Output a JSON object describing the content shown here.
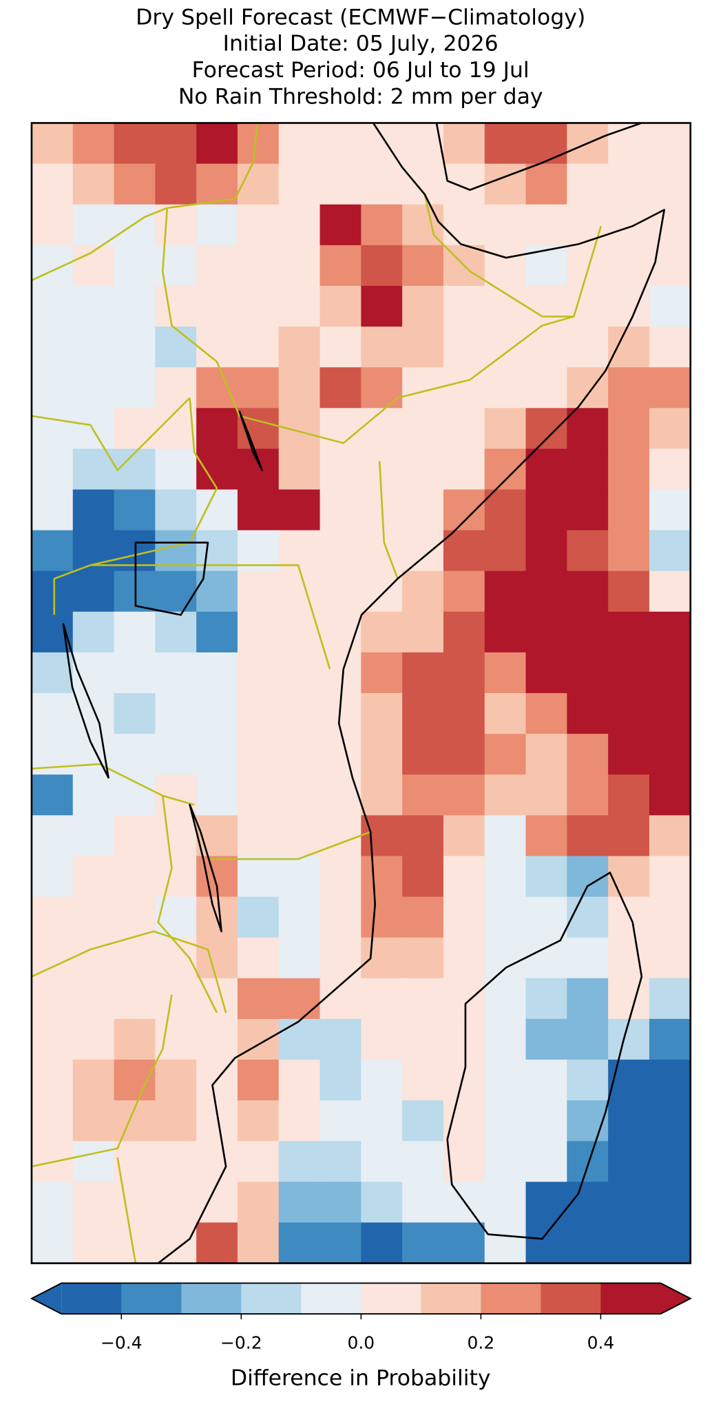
{
  "chart_data": {
    "type": "heatmap",
    "title": [
      "Dry Spell Forecast (ECMWF−Climatology)",
      "Initial Date: 05 July, 2026",
      "Forecast Period: 06 Jul to 19 Jul",
      "No Rain Threshold: 2 mm per day"
    ],
    "values": [
      [
        0.15,
        0.25,
        0.35,
        0.35,
        0.45,
        0.25,
        0.05,
        0.05,
        0.05,
        0.05,
        0.15,
        0.35,
        0.35,
        0.15,
        0.05,
        0.05
      ],
      [
        0.05,
        0.15,
        0.25,
        0.35,
        0.25,
        0.15,
        0.05,
        0.05,
        0.05,
        0.05,
        0.05,
        0.15,
        0.25,
        0.05,
        0.05,
        0.05
      ],
      [
        0.05,
        -0.05,
        -0.05,
        0.05,
        -0.05,
        0.05,
        0.05,
        0.45,
        0.25,
        0.15,
        0.05,
        0.05,
        0.05,
        0.05,
        0.05,
        0.05
      ],
      [
        -0.05,
        0.05,
        -0.05,
        -0.05,
        0.05,
        0.05,
        0.05,
        0.25,
        0.35,
        0.25,
        0.15,
        0.05,
        -0.05,
        0.05,
        0.05,
        0.05
      ],
      [
        -0.05,
        -0.05,
        -0.05,
        0.05,
        0.05,
        0.05,
        0.05,
        0.15,
        0.45,
        0.15,
        0.05,
        0.05,
        0.05,
        0.05,
        0.05,
        -0.05
      ],
      [
        -0.05,
        -0.05,
        -0.05,
        -0.15,
        0.05,
        0.05,
        0.15,
        0.05,
        0.15,
        0.15,
        0.05,
        0.05,
        0.05,
        0.05,
        0.15,
        0.05
      ],
      [
        -0.05,
        -0.05,
        -0.05,
        0.05,
        0.25,
        0.25,
        0.15,
        0.35,
        0.25,
        0.05,
        0.05,
        0.05,
        0.05,
        0.15,
        0.25,
        0.25
      ],
      [
        -0.05,
        -0.05,
        0.05,
        0.05,
        0.45,
        0.35,
        0.15,
        0.05,
        0.05,
        0.05,
        0.05,
        0.15,
        0.35,
        0.45,
        0.25,
        0.15
      ],
      [
        -0.05,
        -0.15,
        -0.15,
        -0.05,
        0.45,
        0.45,
        0.15,
        0.05,
        0.05,
        0.05,
        0.05,
        0.25,
        0.45,
        0.45,
        0.25,
        0.05
      ],
      [
        -0.05,
        -0.45,
        -0.35,
        -0.15,
        -0.05,
        0.45,
        0.45,
        0.05,
        0.05,
        0.05,
        0.25,
        0.35,
        0.45,
        0.45,
        0.25,
        -0.05
      ],
      [
        -0.35,
        -0.45,
        -0.45,
        -0.25,
        -0.15,
        -0.05,
        0.05,
        0.05,
        0.05,
        0.05,
        0.35,
        0.35,
        0.45,
        0.35,
        0.25,
        -0.15
      ],
      [
        -0.45,
        -0.45,
        -0.35,
        -0.35,
        -0.25,
        0.05,
        0.05,
        0.05,
        0.05,
        0.15,
        0.25,
        0.45,
        0.45,
        0.45,
        0.35,
        0.05
      ],
      [
        -0.45,
        -0.15,
        -0.05,
        -0.15,
        -0.35,
        0.05,
        0.05,
        0.05,
        0.15,
        0.15,
        0.35,
        0.45,
        0.45,
        0.45,
        0.45,
        0.45
      ],
      [
        -0.15,
        -0.05,
        -0.05,
        -0.05,
        -0.05,
        0.05,
        0.05,
        0.05,
        0.25,
        0.35,
        0.35,
        0.25,
        0.45,
        0.45,
        0.45,
        0.45
      ],
      [
        -0.05,
        -0.05,
        -0.15,
        -0.05,
        -0.05,
        0.05,
        0.05,
        0.05,
        0.15,
        0.35,
        0.35,
        0.15,
        0.25,
        0.45,
        0.45,
        0.45
      ],
      [
        -0.05,
        -0.05,
        -0.05,
        -0.05,
        -0.05,
        0.05,
        0.05,
        0.05,
        0.15,
        0.35,
        0.35,
        0.25,
        0.15,
        0.25,
        0.45,
        0.45
      ],
      [
        -0.35,
        -0.05,
        -0.05,
        0.05,
        -0.05,
        0.05,
        0.05,
        0.05,
        0.15,
        0.25,
        0.25,
        0.15,
        0.15,
        0.25,
        0.35,
        0.45
      ],
      [
        -0.05,
        -0.05,
        0.05,
        0.05,
        0.15,
        0.05,
        0.05,
        0.05,
        0.35,
        0.35,
        0.15,
        -0.05,
        0.25,
        0.35,
        0.35,
        0.15
      ],
      [
        -0.05,
        0.05,
        0.05,
        0.05,
        0.25,
        -0.05,
        -0.05,
        0.05,
        0.25,
        0.35,
        0.05,
        -0.05,
        -0.15,
        -0.25,
        0.15,
        0.05
      ],
      [
        0.05,
        0.05,
        0.05,
        -0.05,
        0.15,
        -0.15,
        -0.05,
        0.05,
        0.25,
        0.25,
        0.05,
        -0.05,
        -0.05,
        -0.15,
        0.05,
        0.05
      ],
      [
        0.05,
        0.05,
        0.05,
        0.05,
        0.15,
        0.05,
        -0.05,
        0.05,
        0.15,
        0.15,
        0.05,
        -0.05,
        -0.05,
        -0.05,
        0.05,
        0.05
      ],
      [
        0.05,
        0.05,
        0.05,
        0.05,
        0.05,
        0.25,
        0.25,
        0.05,
        0.05,
        0.05,
        0.05,
        -0.05,
        -0.15,
        -0.25,
        0.05,
        -0.15
      ],
      [
        0.05,
        0.05,
        0.15,
        0.05,
        0.05,
        0.15,
        -0.15,
        -0.15,
        0.05,
        0.05,
        0.05,
        -0.05,
        -0.25,
        -0.25,
        -0.15,
        -0.35
      ],
      [
        0.05,
        0.15,
        0.25,
        0.15,
        0.05,
        0.25,
        0.05,
        -0.15,
        -0.05,
        0.05,
        0.05,
        -0.05,
        -0.05,
        -0.15,
        -0.45,
        -0.45
      ],
      [
        0.05,
        0.15,
        0.15,
        0.15,
        0.05,
        0.15,
        0.05,
        -0.05,
        -0.05,
        -0.15,
        0.05,
        -0.05,
        -0.05,
        -0.25,
        -0.45,
        -0.45
      ],
      [
        0.05,
        -0.05,
        0.05,
        0.05,
        0.05,
        0.05,
        -0.15,
        -0.15,
        -0.05,
        -0.05,
        0.05,
        -0.05,
        -0.05,
        -0.35,
        -0.45,
        -0.45
      ],
      [
        -0.05,
        0.05,
        0.05,
        0.05,
        0.05,
        0.15,
        -0.25,
        -0.25,
        -0.15,
        -0.05,
        -0.05,
        -0.05,
        -0.45,
        -0.45,
        -0.45,
        -0.45
      ],
      [
        -0.05,
        0.05,
        0.05,
        0.05,
        0.35,
        0.15,
        -0.35,
        -0.35,
        -0.45,
        -0.35,
        -0.35,
        -0.05,
        -0.45,
        -0.45,
        -0.45,
        -0.45
      ]
    ],
    "colorbar": {
      "label": "Difference in Probability",
      "levels": [
        -0.5,
        -0.4,
        -0.3,
        -0.2,
        -0.1,
        0,
        0.1,
        0.2,
        0.3,
        0.4,
        0.5
      ],
      "colors": [
        "#2166ac",
        "#3f8ac0",
        "#7fb8da",
        "#bbdaeb",
        "#e7eef4",
        "#fbe5dc",
        "#f7c5ae",
        "#ea8d73",
        "#d05649",
        "#b0172b"
      ],
      "extend": "both",
      "ticks": [
        {
          "value": -0.4,
          "label": "−0.4"
        },
        {
          "value": -0.2,
          "label": "−0.2"
        },
        {
          "value": 0,
          "label": "0.0"
        },
        0.2,
        0.4
      ]
    }
  }
}
